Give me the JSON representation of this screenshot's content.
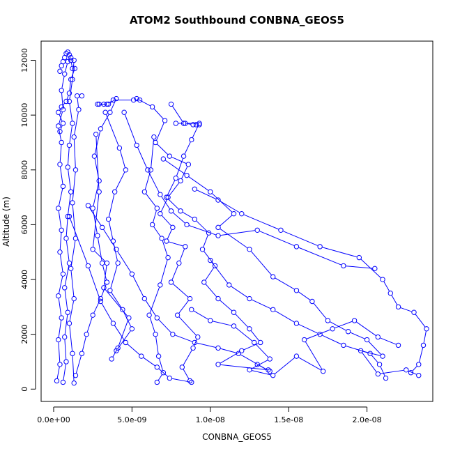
{
  "chart_data": {
    "type": "scatter",
    "title": "ATOM2 Southbound CONBNA_GEOS5",
    "xlabel": "CONBNA_GEOS5",
    "ylabel": "Altitude (m)",
    "xlim": [
      -8e-10,
      2.42e-08
    ],
    "ylim": [
      -450,
      12700
    ],
    "xticks": [
      0,
      5e-09,
      1e-08,
      1.5e-08,
      2e-08
    ],
    "xtick_labels": [
      "0.0e+00",
      "5.0e-09",
      "1.0e-08",
      "1.5e-08",
      "2.0e-08"
    ],
    "yticks": [
      0,
      2000,
      4000,
      6000,
      8000,
      10000,
      12000
    ],
    "ytick_labels": [
      "0",
      "2000",
      "4000",
      "6000",
      "8000",
      "10000",
      "12000"
    ],
    "grid": false,
    "legend": "none",
    "marker": "open-circle",
    "line_style": "points-and-lines",
    "color": "#0000ff",
    "series": [
      {
        "values": [
          [
            2e-10,
            300
          ],
          [
            4e-10,
            900
          ],
          [
            3e-10,
            1800
          ],
          [
            5e-10,
            2600
          ],
          [
            3e-10,
            3400
          ],
          [
            6e-10,
            4200
          ],
          [
            4e-10,
            5000
          ],
          [
            5e-10,
            5800
          ],
          [
            3e-10,
            6600
          ],
          [
            6e-10,
            7400
          ],
          [
            4e-10,
            8200
          ],
          [
            5e-10,
            9000
          ],
          [
            3e-10,
            9600
          ],
          [
            6e-10,
            10200
          ],
          [
            5e-10,
            10900
          ],
          [
            7e-10,
            11500
          ],
          [
            9e-10,
            11950
          ],
          [
            1.1e-09,
            12100
          ]
        ]
      },
      {
        "values": [
          [
            6e-10,
            250
          ],
          [
            8e-10,
            1000
          ],
          [
            7e-10,
            1900
          ],
          [
            9e-10,
            2800
          ],
          [
            7e-10,
            3700
          ],
          [
            1e-09,
            4600
          ],
          [
            8e-10,
            5500
          ],
          [
            9e-10,
            6300
          ],
          [
            1.1e-09,
            7200
          ],
          [
            9e-10,
            8100
          ],
          [
            1e-09,
            8900
          ],
          [
            1.2e-09,
            9700
          ],
          [
            1e-09,
            10500
          ],
          [
            1.2e-09,
            11300
          ],
          [
            1.3e-09,
            12000
          ]
        ]
      },
      {
        "values": [
          [
            1.3e-09,
            220
          ],
          [
            1.2e-09,
            1300
          ],
          [
            1e-09,
            2400
          ],
          [
            1.3e-09,
            3300
          ],
          [
            1.1e-09,
            4400
          ],
          [
            1.4e-09,
            5500
          ],
          [
            1.2e-09,
            6800
          ],
          [
            1.4e-09,
            8000
          ],
          [
            1.3e-09,
            9200
          ],
          [
            1.6e-09,
            10200
          ],
          [
            1.5e-09,
            10700
          ],
          [
            1.8e-09,
            10700
          ]
        ]
      },
      {
        "values": [
          [
            2.8e-09,
            10400
          ],
          [
            3.5e-09,
            10400
          ],
          [
            4e-09,
            10600
          ],
          [
            3.6e-09,
            10100
          ],
          [
            3e-09,
            9500
          ],
          [
            2.6e-09,
            8500
          ],
          [
            2.9e-09,
            7600
          ],
          [
            2.5e-09,
            6600
          ],
          [
            2.8e-09,
            5600
          ],
          [
            3.1e-09,
            4600
          ],
          [
            3.4e-09,
            3900
          ],
          [
            3e-09,
            3300
          ],
          [
            2.5e-09,
            2700
          ],
          [
            2.1e-09,
            2000
          ],
          [
            1.8e-09,
            1300
          ],
          [
            1.4e-09,
            500
          ]
        ]
      },
      {
        "values": [
          [
            3.3e-09,
            10100
          ],
          [
            4.2e-09,
            8800
          ],
          [
            4.6e-09,
            8000
          ],
          [
            3.9e-09,
            7200
          ],
          [
            3.5e-09,
            6200
          ],
          [
            3.8e-09,
            5400
          ],
          [
            4.1e-09,
            4600
          ],
          [
            3.6e-09,
            3600
          ],
          [
            4.4e-09,
            2900
          ],
          [
            5e-09,
            2200
          ],
          [
            4e-09,
            1400
          ]
        ]
      },
      {
        "values": [
          [
            2.7e-09,
            9300
          ],
          [
            2.9e-09,
            7200
          ],
          [
            2.5e-09,
            5100
          ],
          [
            3.4e-09,
            4600
          ],
          [
            3.2e-09,
            3700
          ],
          [
            4.8e-09,
            2600
          ],
          [
            4.1e-09,
            1500
          ],
          [
            3.7e-09,
            1100
          ]
        ]
      },
      {
        "values": [
          [
            5.3e-09,
            10600
          ],
          [
            6.3e-09,
            10300
          ],
          [
            7.1e-09,
            9800
          ],
          [
            6.5e-09,
            9000
          ],
          [
            7.4e-09,
            8500
          ],
          [
            8.6e-09,
            8200
          ],
          [
            8.1e-09,
            7600
          ],
          [
            7.3e-09,
            7000
          ],
          [
            6.8e-09,
            6400
          ],
          [
            7.6e-09,
            5900
          ],
          [
            7.2e-09,
            5400
          ],
          [
            8.4e-09,
            5200
          ],
          [
            8e-09,
            4600
          ],
          [
            7.5e-09,
            3900
          ],
          [
            8.7e-09,
            3300
          ],
          [
            7.9e-09,
            2700
          ],
          [
            9.2e-09,
            1900
          ],
          [
            8.9e-09,
            1500
          ],
          [
            8.2e-09,
            800
          ],
          [
            8.7e-09,
            300
          ]
        ]
      },
      {
        "values": [
          [
            7.5e-09,
            10400
          ],
          [
            8.3e-09,
            9700
          ],
          [
            9.3e-09,
            9700
          ],
          [
            8.8e-09,
            9100
          ],
          [
            8.3e-09,
            8500
          ],
          [
            7.8e-09,
            7700
          ],
          [
            7.2e-09,
            7000
          ],
          [
            8.1e-09,
            6500
          ],
          [
            9e-09,
            6200
          ],
          [
            9.9e-09,
            5700
          ],
          [
            9.5e-09,
            5100
          ],
          [
            1.03e-08,
            4500
          ],
          [
            9.6e-09,
            3900
          ],
          [
            1.05e-08,
            3300
          ],
          [
            1.15e-08,
            2800
          ],
          [
            1.25e-08,
            2200
          ],
          [
            1.32e-08,
            1700
          ],
          [
            1.2e-08,
            1400
          ],
          [
            1.05e-08,
            900
          ],
          [
            1.37e-08,
            700
          ]
        ]
      },
      {
        "values": [
          [
            6.4e-09,
            9200
          ],
          [
            6.2e-09,
            8000
          ],
          [
            5.8e-09,
            7200
          ],
          [
            6.6e-09,
            6600
          ],
          [
            6.3e-09,
            6000
          ],
          [
            6.9e-09,
            5500
          ],
          [
            7.3e-09,
            4800
          ],
          [
            6.8e-09,
            3800
          ],
          [
            6.1e-09,
            2700
          ],
          [
            6.5e-09,
            2000
          ],
          [
            6.7e-09,
            1200
          ],
          [
            7e-09,
            600
          ],
          [
            6.6e-09,
            250
          ]
        ]
      },
      {
        "values": [
          [
            4.5e-09,
            10100
          ],
          [
            5.3e-09,
            8900
          ],
          [
            6e-09,
            8000
          ],
          [
            6.8e-09,
            7100
          ],
          [
            7.5e-09,
            6500
          ],
          [
            8.5e-09,
            6000
          ],
          [
            1.05e-08,
            5600
          ],
          [
            1.3e-08,
            5800
          ],
          [
            1.55e-08,
            5200
          ],
          [
            1.85e-08,
            4500
          ],
          [
            2.05e-08,
            4400
          ]
        ]
      },
      {
        "values": [
          [
            7e-09,
            8400
          ],
          [
            8.5e-09,
            7800
          ],
          [
            1e-08,
            7200
          ],
          [
            1.15e-08,
            6400
          ],
          [
            1.05e-08,
            5900
          ],
          [
            1.25e-08,
            5100
          ],
          [
            1.4e-08,
            4100
          ],
          [
            1.55e-08,
            3600
          ],
          [
            1.65e-08,
            3200
          ],
          [
            1.75e-08,
            2500
          ],
          [
            1.88e-08,
            2100
          ],
          [
            2e-08,
            1800
          ],
          [
            2.1e-08,
            1200
          ],
          [
            1.96e-08,
            1400
          ],
          [
            2.07e-08,
            550
          ],
          [
            2.25e-08,
            700
          ],
          [
            2.33e-08,
            500
          ]
        ]
      },
      {
        "values": [
          [
            9e-09,
            7300
          ],
          [
            1.05e-08,
            6900
          ],
          [
            1.2e-08,
            6400
          ],
          [
            1.45e-08,
            5800
          ],
          [
            1.7e-08,
            5200
          ],
          [
            1.95e-08,
            4800
          ],
          [
            2.1e-08,
            4000
          ],
          [
            2.15e-08,
            3500
          ],
          [
            2.2e-08,
            3000
          ],
          [
            2.3e-08,
            2800
          ],
          [
            2.38e-08,
            2200
          ],
          [
            2.36e-08,
            1600
          ],
          [
            2.33e-08,
            900
          ],
          [
            2.28e-08,
            600
          ]
        ]
      },
      {
        "values": [
          [
            1e-08,
            4700
          ],
          [
            1.12e-08,
            3800
          ],
          [
            1.25e-08,
            3300
          ],
          [
            1.4e-08,
            2900
          ],
          [
            1.55e-08,
            2400
          ],
          [
            1.7e-08,
            2000
          ],
          [
            1.85e-08,
            1600
          ],
          [
            2.02e-08,
            1300
          ],
          [
            2.08e-08,
            900
          ],
          [
            2.12e-08,
            400
          ]
        ]
      },
      {
        "values": [
          [
            8.8e-09,
            2900
          ],
          [
            1e-08,
            2500
          ],
          [
            1.15e-08,
            2300
          ],
          [
            1.28e-08,
            1700
          ],
          [
            1.38e-08,
            1100
          ],
          [
            1.25e-08,
            700
          ],
          [
            1.4e-08,
            500
          ],
          [
            1.55e-08,
            1200
          ],
          [
            1.72e-08,
            650
          ],
          [
            1.6e-08,
            1800
          ],
          [
            1.78e-08,
            2200
          ],
          [
            1.92e-08,
            2500
          ],
          [
            2.07e-08,
            1900
          ],
          [
            2.2e-08,
            1600
          ]
        ]
      },
      {
        "values": [
          [
            2.2e-09,
            6700
          ],
          [
            3.1e-09,
            5900
          ],
          [
            4e-09,
            5100
          ],
          [
            5e-09,
            4200
          ],
          [
            5.8e-09,
            3300
          ],
          [
            6.6e-09,
            2600
          ],
          [
            7.6e-09,
            2000
          ],
          [
            9e-09,
            1700
          ],
          [
            1.05e-08,
            1500
          ],
          [
            1.18e-08,
            1300
          ],
          [
            1.38e-08,
            650
          ],
          [
            1.3e-08,
            900
          ]
        ]
      },
      {
        "values": [
          [
            1e-09,
            6300
          ],
          [
            2.2e-09,
            4500
          ],
          [
            3e-09,
            3200
          ],
          [
            3.8e-09,
            2400
          ],
          [
            4.6e-09,
            1700
          ],
          [
            5.6e-09,
            1200
          ],
          [
            6.6e-09,
            800
          ],
          [
            7.4e-09,
            400
          ],
          [
            8.8e-09,
            250
          ]
        ]
      },
      {
        "values": [
          [
            2.9e-09,
            10400
          ],
          [
            3.2e-09,
            10400
          ],
          [
            3.4e-09,
            10400
          ],
          [
            3.8e-09,
            10550
          ],
          [
            5.1e-09,
            10550
          ],
          [
            5.5e-09,
            10550
          ]
        ]
      },
      {
        "values": [
          [
            7.8e-09,
            9700
          ],
          [
            8.4e-09,
            9700
          ],
          [
            8.9e-09,
            9650
          ],
          [
            9.1e-09,
            9650
          ],
          [
            9.3e-09,
            9650
          ]
        ]
      },
      {
        "values": [
          [
            4e-10,
            11600
          ],
          [
            5e-10,
            11800
          ],
          [
            6e-10,
            11950
          ],
          [
            7e-10,
            12100
          ],
          [
            8e-10,
            12250
          ],
          [
            9e-10,
            12300
          ],
          [
            1e-09,
            12200
          ],
          [
            1.1e-09,
            12000
          ],
          [
            1.2e-09,
            11700
          ],
          [
            1.35e-09,
            11700
          ],
          [
            1.1e-09,
            11300
          ],
          [
            1e-09,
            10800
          ],
          [
            8e-10,
            10500
          ],
          [
            5e-10,
            10300
          ],
          [
            3e-10,
            10100
          ],
          [
            6e-10,
            9700
          ],
          [
            4e-10,
            9400
          ]
        ]
      }
    ]
  }
}
